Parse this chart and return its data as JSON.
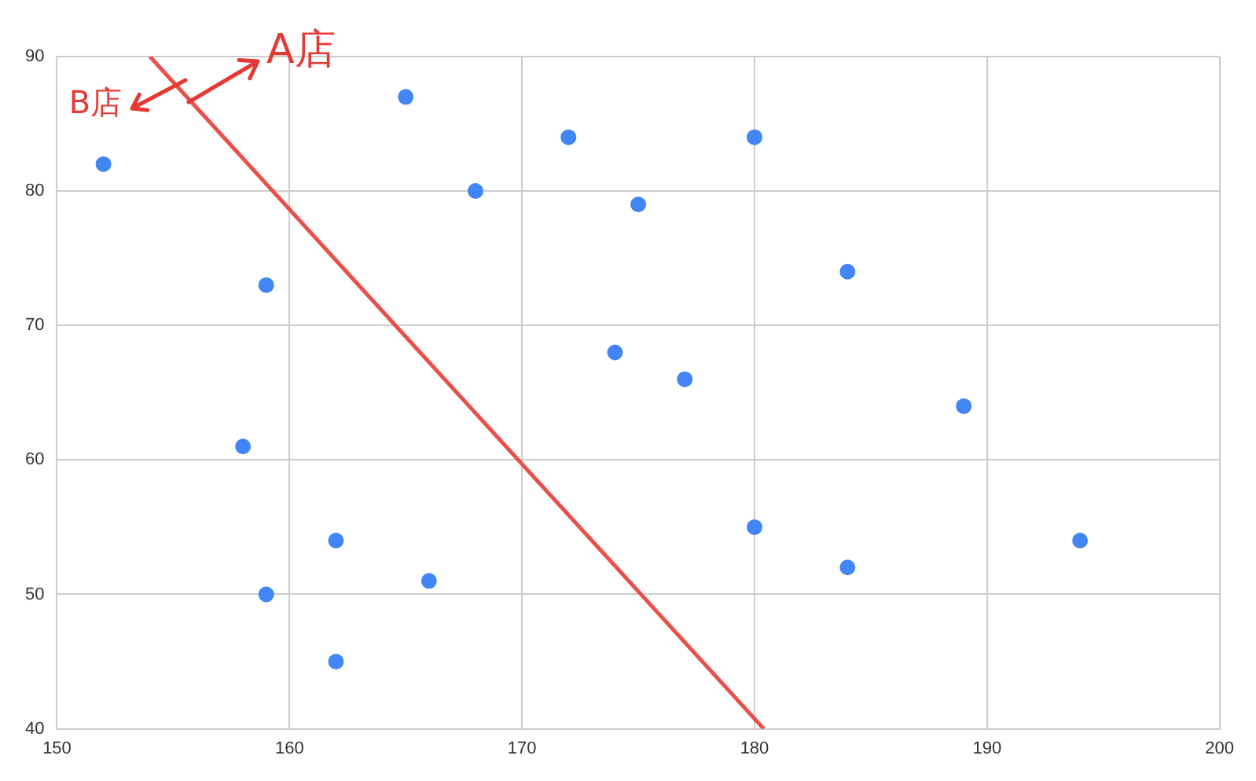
{
  "chart_data": {
    "type": "scatter",
    "series": [
      {
        "type": "scatter",
        "color": "#4285f4",
        "marker": "circle",
        "x": [
          152,
          159,
          158,
          159,
          162,
          162,
          165,
          166,
          168,
          172,
          174,
          175,
          177,
          180,
          180,
          184,
          184,
          189,
          194
        ],
        "values": [
          82,
          73,
          61,
          50,
          54,
          45,
          87,
          51,
          80,
          84,
          68,
          79,
          66,
          84,
          55,
          74,
          52,
          64,
          54
        ]
      },
      {
        "type": "line",
        "color": "#e8504b",
        "x": [
          154,
          180.4
        ],
        "values": [
          90,
          40
        ]
      }
    ],
    "xlim": [
      150,
      200
    ],
    "xticks": [
      150,
      160,
      170,
      180,
      190,
      200
    ],
    "ylim": [
      40,
      90
    ],
    "yticks": [
      40,
      50,
      60,
      70,
      80,
      90
    ],
    "grid": true,
    "legend": false,
    "annotations": [
      {
        "text": "A店",
        "x": 155.7,
        "y": 86.6
      },
      {
        "text": "B店",
        "x": 155.7,
        "y": 86.6
      }
    ]
  }
}
